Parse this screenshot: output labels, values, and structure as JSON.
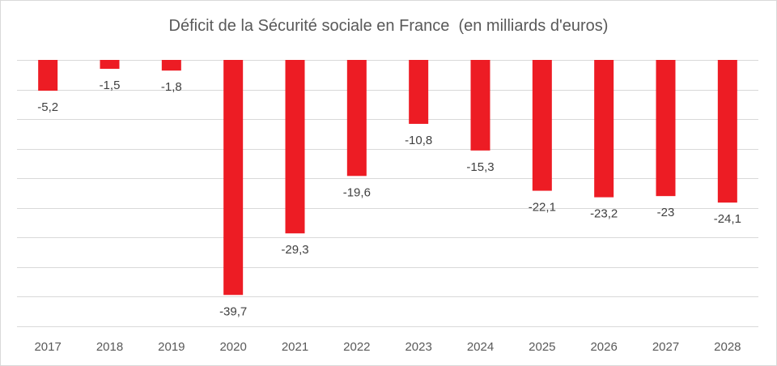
{
  "chart_data": {
    "type": "bar",
    "title": "Déficit de la Sécurité sociale en France  (en milliards d'euros)",
    "xlabel": "",
    "ylabel": "",
    "categories": [
      "2017",
      "2018",
      "2019",
      "2020",
      "2021",
      "2022",
      "2023",
      "2024",
      "2025",
      "2026",
      "2027",
      "2028"
    ],
    "values": [
      -5.2,
      -1.5,
      -1.8,
      -39.7,
      -29.3,
      -19.6,
      -10.8,
      -15.3,
      -22.1,
      -23.2,
      -23,
      -24.1
    ],
    "data_labels": [
      "-5,2",
      "-1,5",
      "-1,8",
      "-39,7",
      "-29,3",
      "-19,6",
      "-10,8",
      "-15,3",
      "-22,1",
      "-23,2",
      "-23",
      "-24,1"
    ],
    "ylim": [
      -45,
      0
    ],
    "grid": true,
    "bar_color": "#ED1C24",
    "legend": "none"
  }
}
